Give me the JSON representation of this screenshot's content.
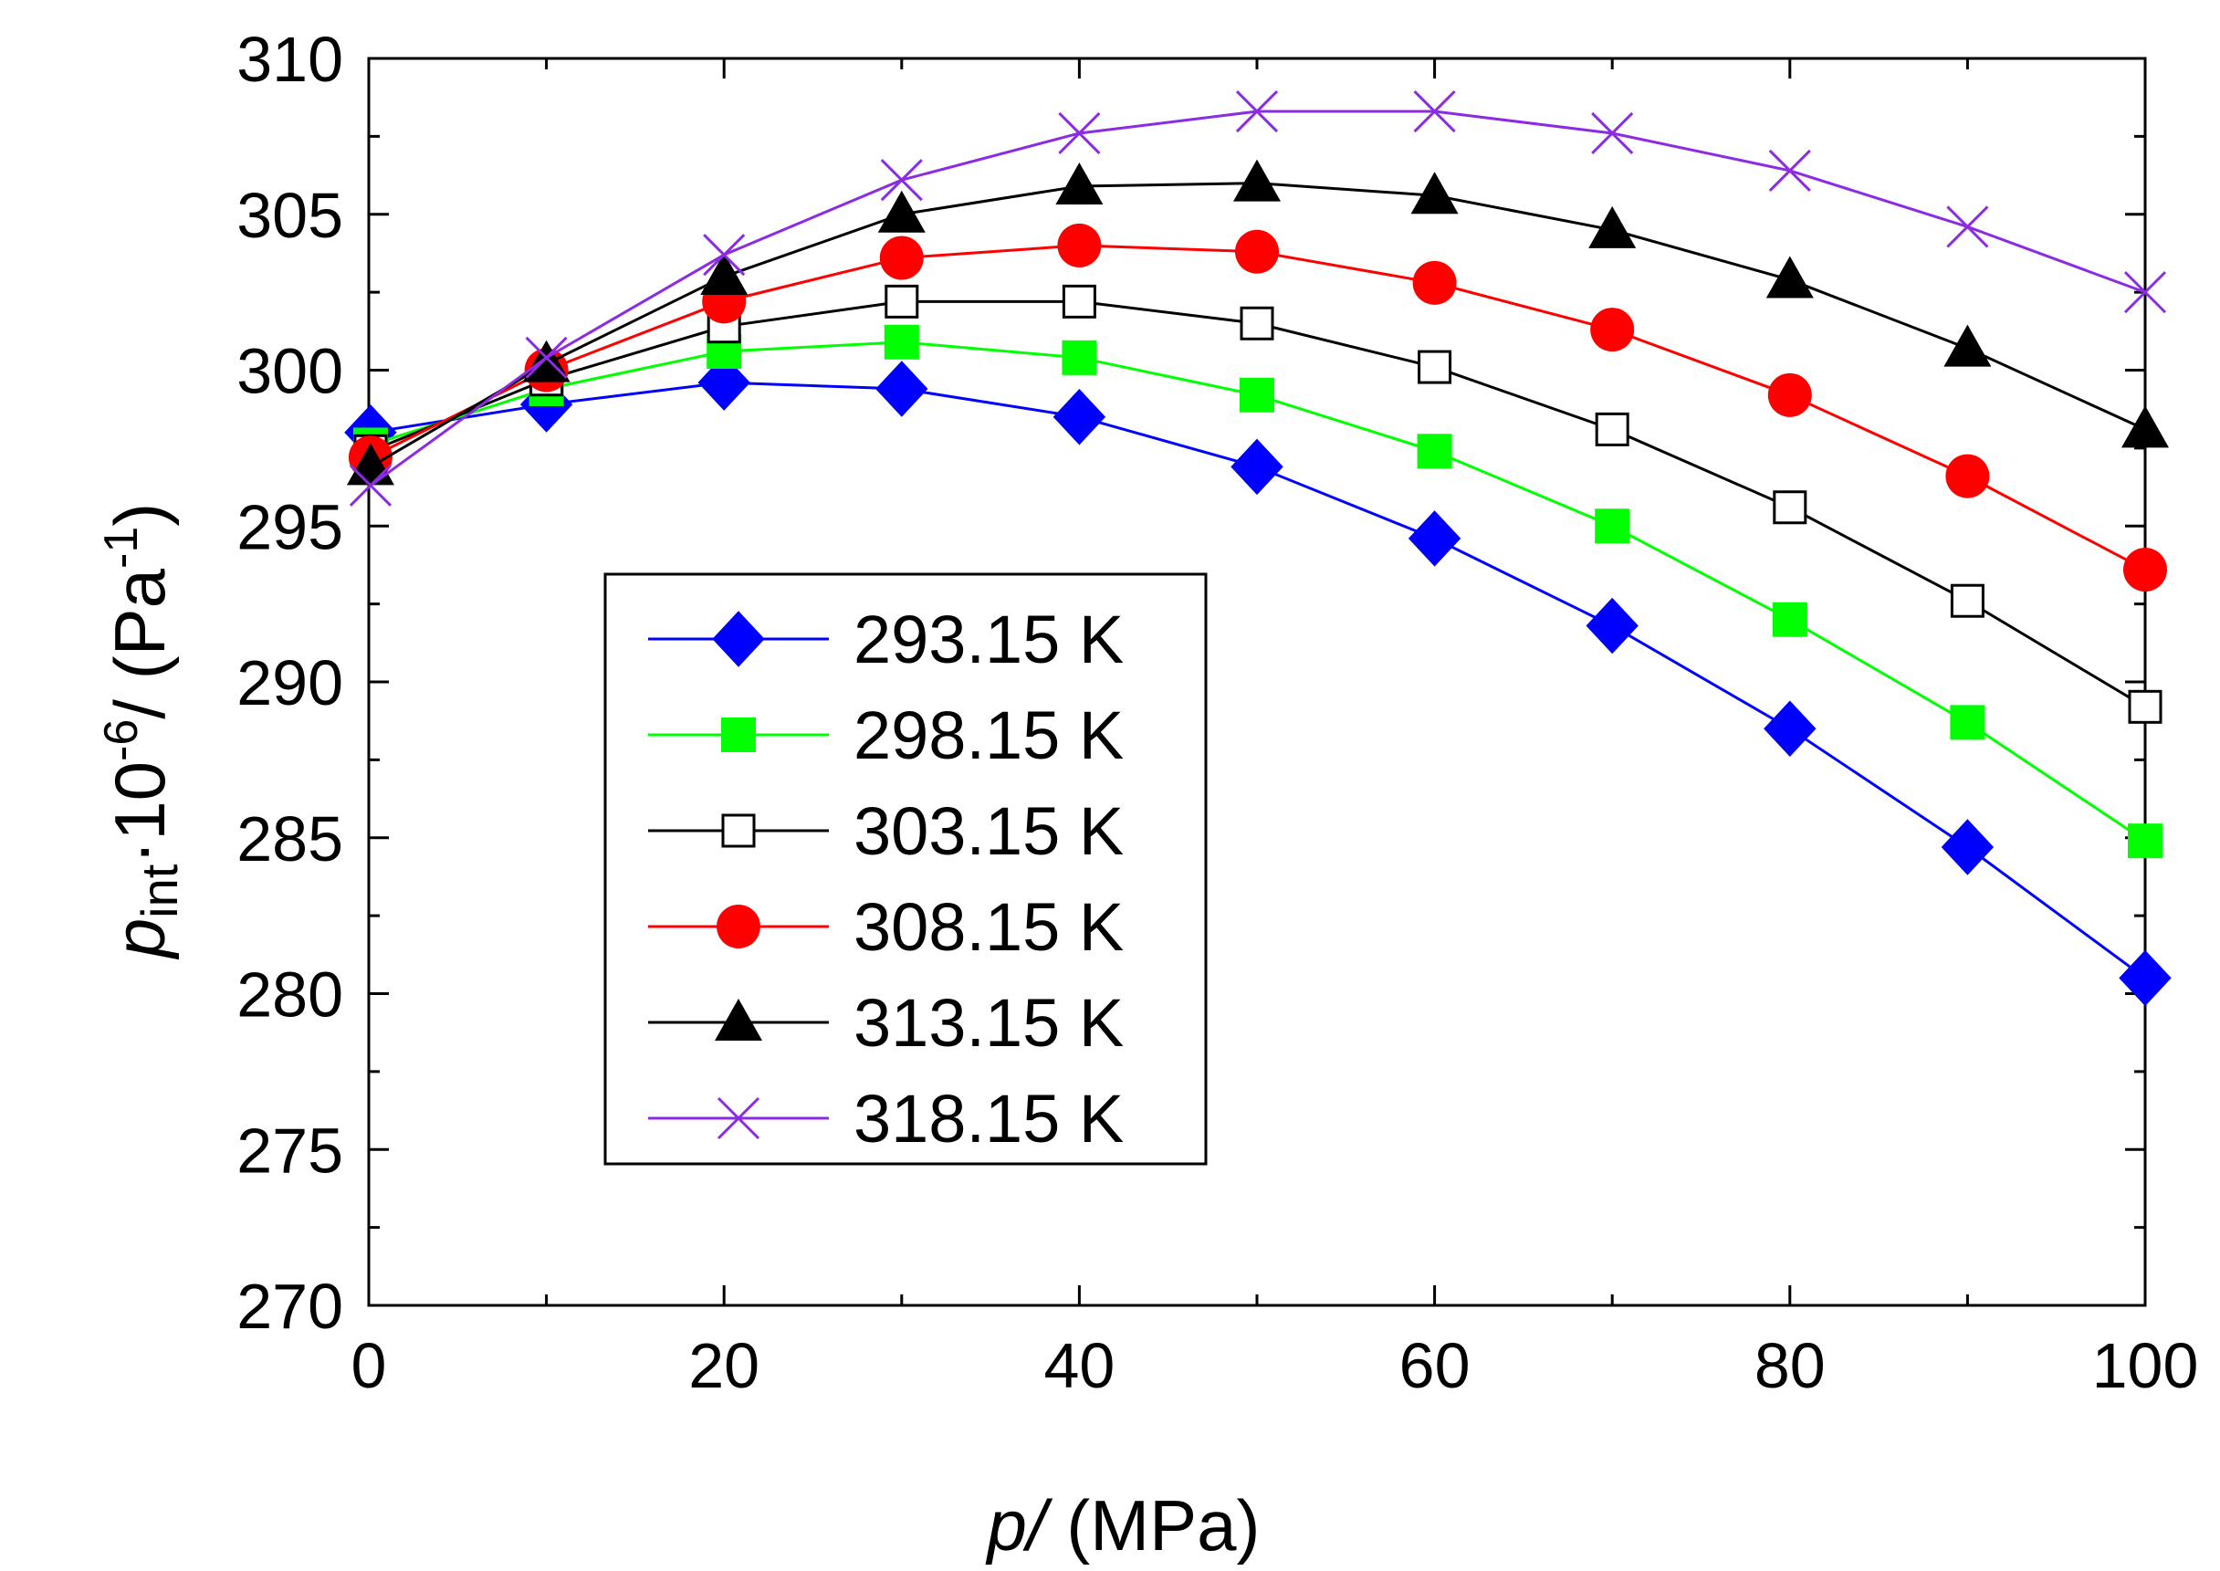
{
  "chart_data": {
    "type": "line",
    "xlabel": {
      "var": "p",
      "sep": "/",
      "unit": " (MPa)"
    },
    "ylabel": {
      "var": "p",
      "sub": "int",
      "mid": "·10",
      "sup": "-6",
      "post": "/ (Pa",
      "sup2": "-1",
      "end": ")"
    },
    "xlim": [
      0,
      100
    ],
    "ylim": [
      270,
      310
    ],
    "xticks": [
      "0",
      "20",
      "40",
      "60",
      "80",
      "100"
    ],
    "yticks": [
      "270",
      "275",
      "280",
      "285",
      "290",
      "295",
      "300",
      "305",
      "310"
    ],
    "grid": false,
    "legend_position": "center-left",
    "x": [
      0.1,
      10,
      20,
      30,
      40,
      50,
      60,
      70,
      80,
      90,
      100
    ],
    "series": [
      {
        "name": "293.15 K",
        "color": "#0000ff",
        "marker": "diamond-filled",
        "values": [
          298.0,
          298.9,
          299.6,
          299.4,
          298.5,
          296.9,
          294.6,
          291.8,
          288.5,
          284.7,
          280.5
        ]
      },
      {
        "name": "298.15 K",
        "color": "#00ff00",
        "marker": "square-filled",
        "values": [
          297.6,
          299.4,
          300.6,
          300.9,
          300.4,
          299.2,
          297.4,
          295.0,
          292.0,
          288.7,
          284.9
        ]
      },
      {
        "name": "303.15 K",
        "color": "#000000",
        "marker": "square-open",
        "values": [
          297.4,
          299.7,
          301.4,
          302.2,
          302.2,
          301.5,
          300.1,
          298.1,
          295.6,
          292.6,
          289.2
        ]
      },
      {
        "name": "308.15 K",
        "color": "#ff0000",
        "marker": "circle-filled",
        "values": [
          297.2,
          300.0,
          302.2,
          303.6,
          304.0,
          303.8,
          302.8,
          301.3,
          299.2,
          296.6,
          293.6
        ]
      },
      {
        "name": "313.15 K",
        "color": "#000000",
        "marker": "triangle-filled",
        "values": [
          296.9,
          300.2,
          303.0,
          305.0,
          305.9,
          306.0,
          305.6,
          304.5,
          302.9,
          300.7,
          298.1
        ]
      },
      {
        "name": "318.15 K",
        "color": "#8b2be2",
        "marker": "x",
        "values": [
          296.3,
          300.4,
          303.7,
          306.1,
          307.6,
          308.3,
          308.3,
          307.6,
          306.4,
          304.6,
          302.5
        ]
      }
    ]
  }
}
